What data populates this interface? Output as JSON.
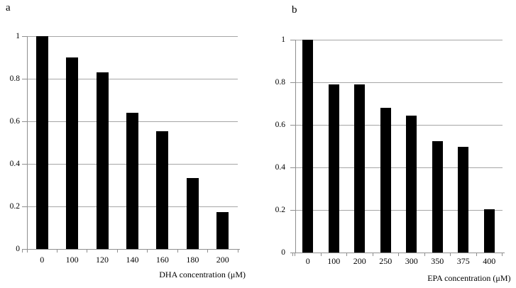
{
  "figure": {
    "background": "#ffffff",
    "bar_color": "#000000",
    "axis_color": "#8f8f8f",
    "gridline_color": "#a6a6a6",
    "text_color": "#000000"
  },
  "chart_data": [
    {
      "type": "bar",
      "panel_label": "a",
      "categories": [
        "0",
        "100",
        "120",
        "140",
        "160",
        "180",
        "200"
      ],
      "values": [
        1.0,
        0.9,
        0.83,
        0.64,
        0.553,
        0.335,
        0.175
      ],
      "title": "",
      "xlabel": "DHA concentration (μM)",
      "ylabel": "",
      "ylim": [
        0,
        1
      ],
      "ytick_step": 0.2,
      "ytick_labels": [
        "0",
        "0.2",
        "0.4",
        "0.6",
        "0.8",
        "1"
      ],
      "grid": "horizontal",
      "legend": "none"
    },
    {
      "type": "bar",
      "panel_label": "b",
      "categories": [
        "0",
        "100",
        "200",
        "250",
        "300",
        "350",
        "375",
        "400"
      ],
      "values": [
        1.0,
        0.79,
        0.79,
        0.68,
        0.645,
        0.525,
        0.497,
        0.205
      ],
      "title": "",
      "xlabel": "EPA concentration (μM)",
      "ylabel": "",
      "ylim": [
        0,
        1
      ],
      "ytick_step": 0.2,
      "ytick_labels": [
        "0",
        "0.2",
        "0.4",
        "0.6",
        "0.8",
        "1"
      ],
      "grid": "horizontal",
      "legend": "none"
    }
  ]
}
